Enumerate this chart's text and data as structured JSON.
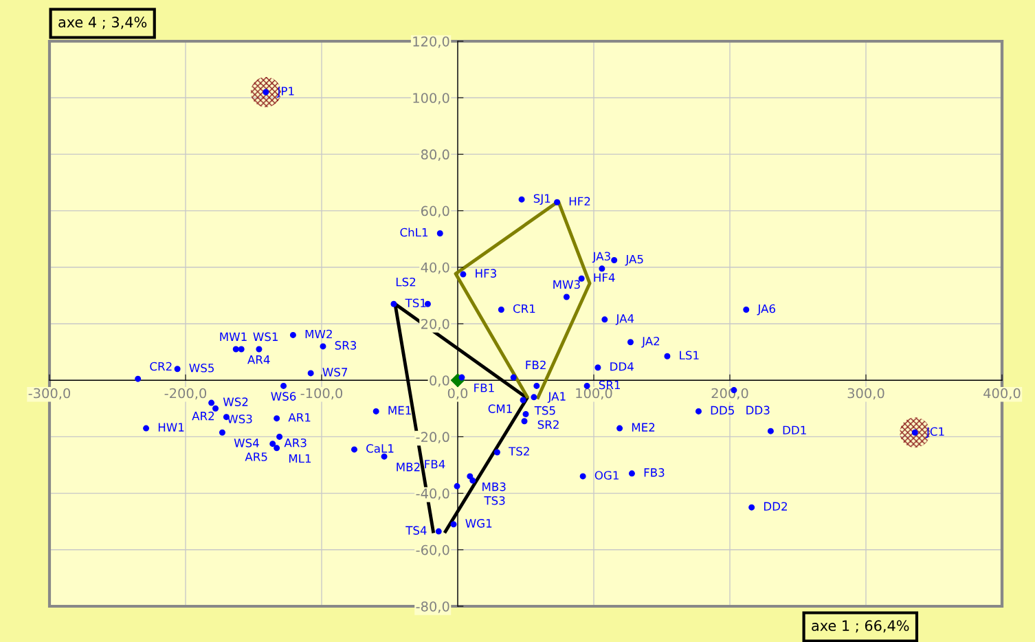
{
  "chart_data": {
    "type": "scatter",
    "xlabel": "axe 1 ; 66,4%",
    "ylabel": "axe 4 ; 3,4%",
    "xlim": [
      -300,
      400
    ],
    "ylim": [
      -80,
      120
    ],
    "xticks": [
      {
        "value": -300,
        "label": "-300,0"
      },
      {
        "value": -200,
        "label": "-200,0"
      },
      {
        "value": -100,
        "label": "-100,0"
      },
      {
        "value": 0,
        "label": "0,0"
      },
      {
        "value": 100,
        "label": "100,0"
      },
      {
        "value": 200,
        "label": "200,0"
      },
      {
        "value": 300,
        "label": "300,0"
      },
      {
        "value": 400,
        "label": "400,0"
      }
    ],
    "yticks": [
      {
        "value": -80,
        "label": "-80,0"
      },
      {
        "value": -60,
        "label": "-60,0"
      },
      {
        "value": -40,
        "label": "-40,0"
      },
      {
        "value": -20,
        "label": "-20,0"
      },
      {
        "value": 0,
        "label": "0,0"
      },
      {
        "value": 20,
        "label": "20,0"
      },
      {
        "value": 40,
        "label": "40,0"
      },
      {
        "value": 60,
        "label": "60,0"
      },
      {
        "value": 80,
        "label": "80,0"
      },
      {
        "value": 100,
        "label": "100,0"
      },
      {
        "value": 120,
        "label": "120,0"
      }
    ],
    "grid": true,
    "legend": false,
    "series": [
      {
        "type": "bubble",
        "marker": "circle",
        "color": "#8b1a1a",
        "x": [
          -141,
          336
        ],
        "values": [
          102,
          -18.5
        ],
        "sizes": [
          1,
          1
        ]
      },
      {
        "type": "line",
        "marker": "none",
        "line_style": "solid",
        "color": "#000000",
        "x": [
          -18,
          -46,
          51,
          -9
        ],
        "values": [
          -53.5,
          27,
          -6.3,
          -53.5
        ]
      },
      {
        "type": "line",
        "marker": "none",
        "line_style": "solid",
        "color": "#808000",
        "x": [
          51,
          -1.5,
          74,
          97,
          59
        ],
        "values": [
          -5.8,
          37.7,
          63.3,
          34.3,
          -6.1
        ]
      },
      {
        "marker": "diamond",
        "color": "#008000",
        "x": [
          0
        ],
        "values": [
          0
        ]
      },
      {
        "marker": "circle",
        "color": "#0000ff",
        "x": [
          -141,
          336,
          47,
          73,
          -13,
          4,
          -47,
          -22,
          32,
          80,
          91,
          106,
          115,
          108,
          127,
          154,
          103,
          95,
          212,
          203,
          177,
          119,
          230,
          92,
          128,
          216,
          3,
          41,
          58,
          56,
          48,
          50,
          49,
          29,
          -60,
          -76,
          -54,
          9,
          11,
          -0.5,
          -3,
          -14,
          -121,
          -99,
          -163,
          -159,
          -146,
          -235,
          -206,
          -108,
          -128,
          -181,
          -178,
          -170,
          -133,
          -229,
          -173,
          -136,
          -133,
          -131
        ],
        "values": [
          102,
          -18.5,
          64,
          63,
          52,
          37.5,
          27,
          27,
          25,
          29.5,
          36,
          39.5,
          42.5,
          21.5,
          13.5,
          8.5,
          4.5,
          -2,
          25,
          -3.5,
          -11,
          -17,
          -18,
          -34,
          -33,
          -45,
          1,
          1,
          -2,
          -6,
          -7,
          -12,
          -14.5,
          -25.5,
          -11,
          -24.5,
          -27,
          -34,
          -35.5,
          -37.5,
          -51,
          -53.5,
          16,
          12,
          11,
          11,
          11,
          0.5,
          4,
          2.5,
          -2,
          -8,
          -10,
          -13,
          -13.5,
          -17,
          -18.5,
          -22.5,
          -24,
          -20
        ]
      }
    ],
    "annotations": [
      {
        "text": "JP1",
        "x": -141,
        "y": 102
      },
      {
        "text": "JC1",
        "x": 336,
        "y": -18.5
      },
      {
        "text": "SJ1",
        "x": 47,
        "y": 64
      },
      {
        "text": "HF2",
        "x": 73,
        "y": 63
      },
      {
        "text": "ChL1",
        "x": -13,
        "y": 52
      },
      {
        "text": "HF3",
        "x": 4,
        "y": 37.5
      },
      {
        "text": "TS1",
        "x": -47,
        "y": 27
      },
      {
        "text": "LS2",
        "x": -22,
        "y": 27
      },
      {
        "text": "CR1",
        "x": 32,
        "y": 25
      },
      {
        "text": "MW3",
        "x": 80,
        "y": 29.5
      },
      {
        "text": "HF4",
        "x": 91,
        "y": 36
      },
      {
        "text": "JA3",
        "x": 106,
        "y": 39.5
      },
      {
        "text": "JA5",
        "x": 115,
        "y": 42.5
      },
      {
        "text": "JA4",
        "x": 108,
        "y": 21.5
      },
      {
        "text": "JA2",
        "x": 127,
        "y": 13.5
      },
      {
        "text": "LS1",
        "x": 154,
        "y": 8.5
      },
      {
        "text": "DD4",
        "x": 103,
        "y": 4.5
      },
      {
        "text": "SR1",
        "x": 95,
        "y": -2
      },
      {
        "text": "JA6",
        "x": 212,
        "y": 25
      },
      {
        "text": "DD3",
        "x": 203,
        "y": -3.5
      },
      {
        "text": "DD5",
        "x": 177,
        "y": -11
      },
      {
        "text": "ME2",
        "x": 119,
        "y": -17
      },
      {
        "text": "DD1",
        "x": 230,
        "y": -18
      },
      {
        "text": "OG1",
        "x": 92,
        "y": -34
      },
      {
        "text": "FB3",
        "x": 128,
        "y": -33
      },
      {
        "text": "DD2",
        "x": 216,
        "y": -45
      },
      {
        "text": "FB1",
        "x": 3,
        "y": 1
      },
      {
        "text": "FB2",
        "x": 41,
        "y": 1
      },
      {
        "text": "JA1",
        "x": 58,
        "y": -2
      },
      {
        "text": "TS5",
        "x": 48,
        "y": -7
      },
      {
        "text": "SR2",
        "x": 50,
        "y": -12
      },
      {
        "text": "CM1",
        "x": 49,
        "y": -14.5
      },
      {
        "text": "TS2",
        "x": 29,
        "y": -25.5
      },
      {
        "text": "ME1",
        "x": -60,
        "y": -11
      },
      {
        "text": "CaL1",
        "x": -76,
        "y": -24.5
      },
      {
        "text": "MB2",
        "x": -54,
        "y": -27
      },
      {
        "text": "MB3",
        "x": 9,
        "y": -34
      },
      {
        "text": "TS3",
        "x": 11,
        "y": -35.5
      },
      {
        "text": "FB4",
        "x": -0.5,
        "y": -37.5
      },
      {
        "text": "WG1",
        "x": -3,
        "y": -51
      },
      {
        "text": "TS4",
        "x": -14,
        "y": -53.5
      },
      {
        "text": "MW2",
        "x": -121,
        "y": 16
      },
      {
        "text": "SR3",
        "x": -99,
        "y": 12
      },
      {
        "text": "AR4",
        "x": -163,
        "y": 11
      },
      {
        "text": "WS1",
        "x": -159,
        "y": 11
      },
      {
        "text": "MW1",
        "x": -146,
        "y": 11
      },
      {
        "text": "CR2",
        "x": -235,
        "y": 0.5
      },
      {
        "text": "WS5",
        "x": -206,
        "y": 4
      },
      {
        "text": "WS7",
        "x": -108,
        "y": 2.5
      },
      {
        "text": "WS6",
        "x": -128,
        "y": -2
      },
      {
        "text": "WS2",
        "x": -181,
        "y": -8
      },
      {
        "text": "WS3",
        "x": -178,
        "y": -10
      },
      {
        "text": "AR2",
        "x": -170,
        "y": -13
      },
      {
        "text": "AR1",
        "x": -133,
        "y": -13.5
      },
      {
        "text": "HW1",
        "x": -229,
        "y": -17
      },
      {
        "text": "WS4",
        "x": -173,
        "y": -18.5
      },
      {
        "text": "AR3",
        "x": -136,
        "y": -22.5
      },
      {
        "text": "ML1",
        "x": -133,
        "y": -24
      },
      {
        "text": "AR5",
        "x": -131,
        "y": -20
      }
    ]
  }
}
